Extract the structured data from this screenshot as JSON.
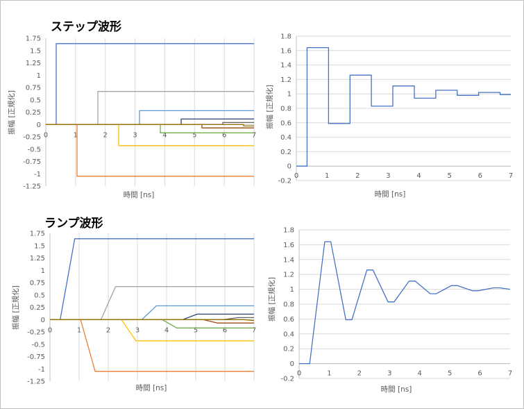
{
  "chart_data": [
    {
      "id": "step-multi",
      "type": "line",
      "title": "ステップ波形",
      "xlabel": "時間 [ns]",
      "ylabel": "振幅 [正規化]",
      "xlim": [
        0,
        7
      ],
      "ylim": [
        -1.25,
        1.75
      ],
      "xticks": [
        0,
        1,
        2,
        3,
        4,
        5,
        6,
        7
      ],
      "yticks": [
        -1.25,
        -1,
        -0.75,
        -0.5,
        -0.25,
        0,
        0.25,
        0.5,
        0.75,
        1,
        1.25,
        1.5,
        1.75
      ],
      "gridlines": "vertical",
      "series": [
        {
          "color": "#4472c4",
          "x": [
            0,
            0.35,
            0.35,
            7
          ],
          "y": [
            0,
            0,
            1.64,
            1.64
          ]
        },
        {
          "color": "#ed7d31",
          "x": [
            0,
            1.05,
            1.05,
            7
          ],
          "y": [
            0,
            0,
            -1.05,
            -1.05
          ]
        },
        {
          "color": "#a5a5a5",
          "x": [
            0,
            1.75,
            1.75,
            7
          ],
          "y": [
            0,
            0,
            0.67,
            0.67
          ]
        },
        {
          "color": "#ffc000",
          "x": [
            0,
            2.45,
            2.45,
            7
          ],
          "y": [
            0,
            0,
            -0.43,
            -0.43
          ]
        },
        {
          "color": "#5b9bd5",
          "x": [
            0,
            3.15,
            3.15,
            7
          ],
          "y": [
            0,
            0,
            0.28,
            0.28
          ]
        },
        {
          "color": "#70ad47",
          "x": [
            0,
            3.85,
            3.85,
            7
          ],
          "y": [
            0,
            0,
            -0.17,
            -0.17
          ]
        },
        {
          "color": "#264478",
          "x": [
            0,
            4.55,
            4.55,
            7
          ],
          "y": [
            0,
            0,
            0.11,
            0.11
          ]
        },
        {
          "color": "#9e480e",
          "x": [
            0,
            5.25,
            5.25,
            7
          ],
          "y": [
            0,
            0,
            -0.07,
            -0.07
          ]
        },
        {
          "color": "#636363",
          "x": [
            0,
            5.95,
            5.95,
            7
          ],
          "y": [
            0,
            0,
            0.04,
            0.04
          ]
        },
        {
          "color": "#997300",
          "x": [
            0,
            6.65,
            6.65,
            7
          ],
          "y": [
            0,
            0,
            -0.03,
            -0.03
          ]
        }
      ]
    },
    {
      "id": "step-sum",
      "type": "line",
      "title": "",
      "xlabel": "時間 [ns]",
      "ylabel": "振幅 [正規化]",
      "xlim": [
        0,
        7
      ],
      "ylim": [
        -0.2,
        1.8
      ],
      "xticks": [
        0,
        1,
        2,
        3,
        4,
        5,
        6,
        7
      ],
      "yticks": [
        -0.2,
        0,
        0.2,
        0.4,
        0.6,
        0.8,
        1,
        1.2,
        1.4,
        1.6,
        1.8
      ],
      "gridlines": "horizontal",
      "series": [
        {
          "color": "#4472c4",
          "x": [
            0,
            0.35,
            0.35,
            1.05,
            1.05,
            1.75,
            1.75,
            2.45,
            2.45,
            3.15,
            3.15,
            3.85,
            3.85,
            4.55,
            4.55,
            5.25,
            5.25,
            5.95,
            5.95,
            6.65,
            6.65,
            7
          ],
          "y": [
            0,
            0,
            1.64,
            1.64,
            0.59,
            0.59,
            1.26,
            1.26,
            0.83,
            0.83,
            1.11,
            1.11,
            0.94,
            0.94,
            1.05,
            1.05,
            0.98,
            0.98,
            1.02,
            1.02,
            0.99,
            0.99
          ]
        }
      ]
    },
    {
      "id": "ramp-multi",
      "type": "line",
      "title": "ランプ波形",
      "xlabel": "時間 [ns]",
      "ylabel": "振幅 [正規化]",
      "xlim": [
        0,
        7
      ],
      "ylim": [
        -1.25,
        1.75
      ],
      "xticks": [
        0,
        1,
        2,
        3,
        4,
        5,
        6,
        7
      ],
      "yticks": [
        -1.25,
        -1,
        -0.75,
        -0.5,
        -0.25,
        0,
        0.25,
        0.5,
        0.75,
        1,
        1.25,
        1.5,
        1.75
      ],
      "gridlines": "vertical",
      "series": [
        {
          "color": "#4472c4",
          "x": [
            0,
            0.35,
            0.85,
            7
          ],
          "y": [
            0,
            0,
            1.64,
            1.64
          ]
        },
        {
          "color": "#ed7d31",
          "x": [
            0,
            1.05,
            1.55,
            7
          ],
          "y": [
            0,
            0,
            -1.05,
            -1.05
          ]
        },
        {
          "color": "#a5a5a5",
          "x": [
            0,
            1.75,
            2.25,
            7
          ],
          "y": [
            0,
            0,
            0.67,
            0.67
          ]
        },
        {
          "color": "#ffc000",
          "x": [
            0,
            2.45,
            2.95,
            7
          ],
          "y": [
            0,
            0,
            -0.43,
            -0.43
          ]
        },
        {
          "color": "#5b9bd5",
          "x": [
            0,
            3.15,
            3.65,
            7
          ],
          "y": [
            0,
            0,
            0.28,
            0.28
          ]
        },
        {
          "color": "#70ad47",
          "x": [
            0,
            3.85,
            4.35,
            7
          ],
          "y": [
            0,
            0,
            -0.17,
            -0.17
          ]
        },
        {
          "color": "#264478",
          "x": [
            0,
            4.55,
            5.05,
            7
          ],
          "y": [
            0,
            0,
            0.11,
            0.11
          ]
        },
        {
          "color": "#9e480e",
          "x": [
            0,
            5.25,
            5.75,
            7
          ],
          "y": [
            0,
            0,
            -0.07,
            -0.07
          ]
        },
        {
          "color": "#636363",
          "x": [
            0,
            5.95,
            6.45,
            7
          ],
          "y": [
            0,
            0,
            0.04,
            0.04
          ]
        },
        {
          "color": "#997300",
          "x": [
            0,
            6.65,
            7
          ],
          "y": [
            0,
            0,
            -0.02
          ]
        }
      ]
    },
    {
      "id": "ramp-sum",
      "type": "line",
      "title": "",
      "xlabel": "時間 [ns]",
      "ylabel": "振幅 [正規化]",
      "xlim": [
        0,
        7
      ],
      "ylim": [
        -0.2,
        1.8
      ],
      "xticks": [
        0,
        1,
        2,
        3,
        4,
        5,
        6,
        7
      ],
      "yticks": [
        -0.2,
        0,
        0.2,
        0.4,
        0.6,
        0.8,
        1,
        1.2,
        1.4,
        1.6,
        1.8
      ],
      "gridlines": "horizontal",
      "series": [
        {
          "color": "#4472c4",
          "x": [
            0,
            0.35,
            0.85,
            1.05,
            1.55,
            1.75,
            2.25,
            2.45,
            2.95,
            3.15,
            3.65,
            3.85,
            4.35,
            4.55,
            5.05,
            5.25,
            5.75,
            5.95,
            6.45,
            6.65,
            7
          ],
          "y": [
            0,
            0,
            1.64,
            1.64,
            0.59,
            0.59,
            1.26,
            1.26,
            0.83,
            0.83,
            1.11,
            1.11,
            0.94,
            0.94,
            1.05,
            1.05,
            0.98,
            0.98,
            1.02,
            1.02,
            1.0
          ]
        }
      ]
    }
  ]
}
